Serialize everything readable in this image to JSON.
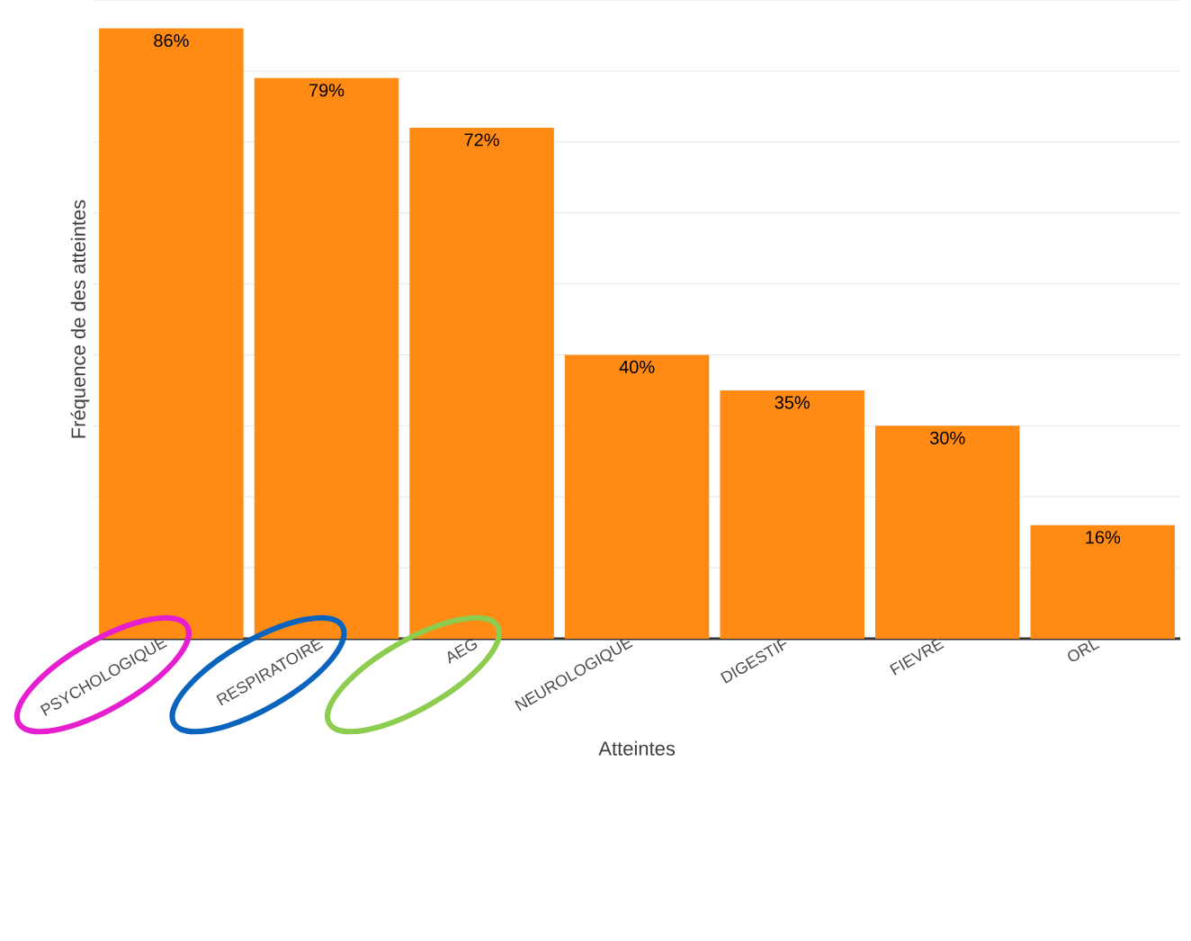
{
  "chart_data": {
    "type": "bar",
    "xlabel": "Atteintes",
    "ylabel": "Fréquence de des atteintes",
    "categories": [
      "PSYCHOLOGIQUE",
      "RESPIRATOIRE",
      "AEG",
      "NEUROLOGIQUE",
      "DIGESTIF",
      "FIEVRE",
      "ORL"
    ],
    "values": [
      86,
      79,
      72,
      40,
      35,
      30,
      16
    ],
    "value_labels": [
      "86%",
      "79%",
      "72%",
      "40%",
      "35%",
      "30%",
      "16%"
    ],
    "color": "#ff8a14",
    "ylim": [
      0,
      90
    ],
    "yticks": [
      {
        "value": 0,
        "label": null
      },
      {
        "value": 10,
        "label": null
      },
      {
        "value": 20,
        "label": null
      },
      {
        "value": 30,
        "label": null
      },
      {
        "value": 40,
        "label": null
      },
      {
        "value": 50,
        "label": null
      },
      {
        "value": 60,
        "label": null
      },
      {
        "value": 70,
        "label": null
      },
      {
        "value": 80,
        "label": null
      },
      {
        "value": 90,
        "label": null
      }
    ],
    "grid": "y",
    "tick_labels": "x"
  }
}
